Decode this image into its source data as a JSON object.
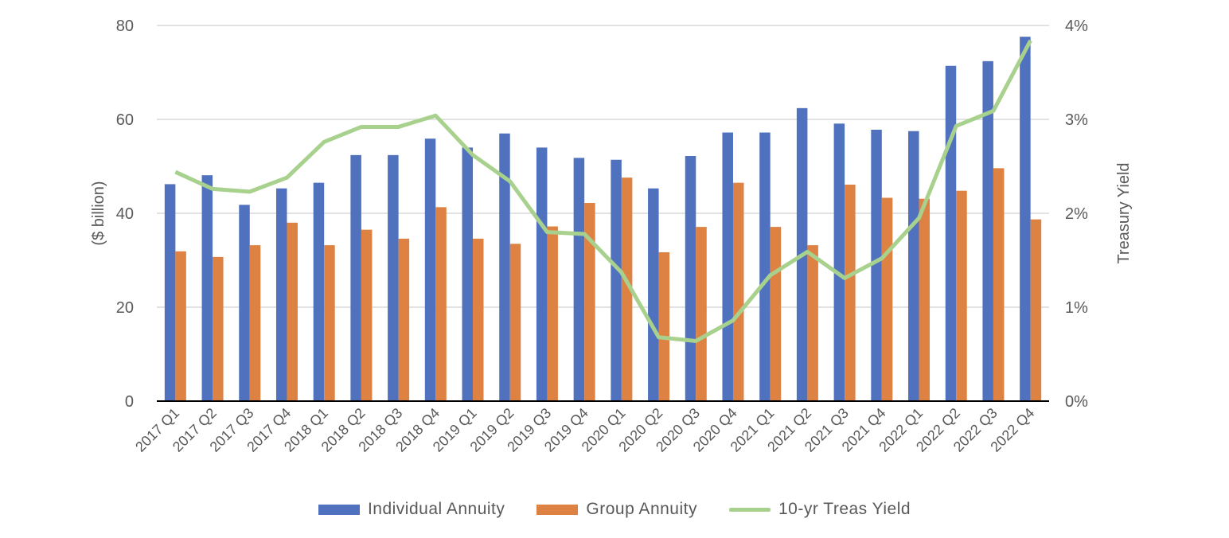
{
  "chart_data": {
    "type": "bar",
    "categories": [
      "2017 Q1",
      "2017 Q2",
      "2017 Q3",
      "2017 Q4",
      "2018 Q1",
      "2018 Q2",
      "2018 Q3",
      "2018 Q4",
      "2019 Q1",
      "2019 Q2",
      "2019 Q3",
      "2019 Q4",
      "2020 Q1",
      "2020 Q2",
      "2020 Q3",
      "2020 Q4",
      "2021 Q1",
      "2021 Q2",
      "2021 Q3",
      "2021 Q4",
      "2022 Q1",
      "2022 Q2",
      "2022 Q3",
      "2022 Q4"
    ],
    "series": [
      {
        "name": "Individual Annuity",
        "type": "bar",
        "axis": "left",
        "color": "#4f71be",
        "values": [
          46.2,
          48.1,
          41.8,
          45.3,
          46.5,
          52.4,
          52.4,
          55.9,
          54.0,
          57.0,
          54.0,
          51.8,
          51.4,
          45.3,
          52.2,
          57.2,
          57.2,
          62.4,
          59.1,
          57.8,
          57.5,
          71.4,
          72.4,
          77.6
        ]
      },
      {
        "name": "Group Annuity",
        "type": "bar",
        "axis": "left",
        "color": "#de8244",
        "values": [
          31.9,
          30.7,
          33.2,
          38.0,
          33.2,
          36.5,
          34.6,
          41.3,
          34.6,
          33.5,
          37.2,
          42.2,
          47.6,
          31.7,
          37.1,
          46.5,
          37.1,
          33.2,
          46.1,
          43.3,
          43.1,
          44.8,
          49.6,
          38.7
        ]
      },
      {
        "name": "10-yr Treas Yield",
        "type": "line",
        "axis": "right",
        "color": "#a9d18e",
        "values": [
          2.44,
          2.26,
          2.23,
          2.38,
          2.76,
          2.92,
          2.92,
          3.04,
          2.62,
          2.34,
          1.8,
          1.78,
          1.37,
          0.68,
          0.64,
          0.86,
          1.34,
          1.59,
          1.31,
          1.52,
          1.95,
          2.93,
          3.09,
          3.84
        ]
      }
    ],
    "ylabel": "($ billion)",
    "y2label": "Treasury Yield",
    "ylim": [
      0,
      80
    ],
    "y2lim": [
      0,
      4
    ],
    "yticks": [
      "0",
      "20",
      "40",
      "60",
      "80"
    ],
    "y2ticks": [
      "0%",
      "1%",
      "2%",
      "3%",
      "4%"
    ],
    "grid": true,
    "legend_placement": "bottom"
  }
}
